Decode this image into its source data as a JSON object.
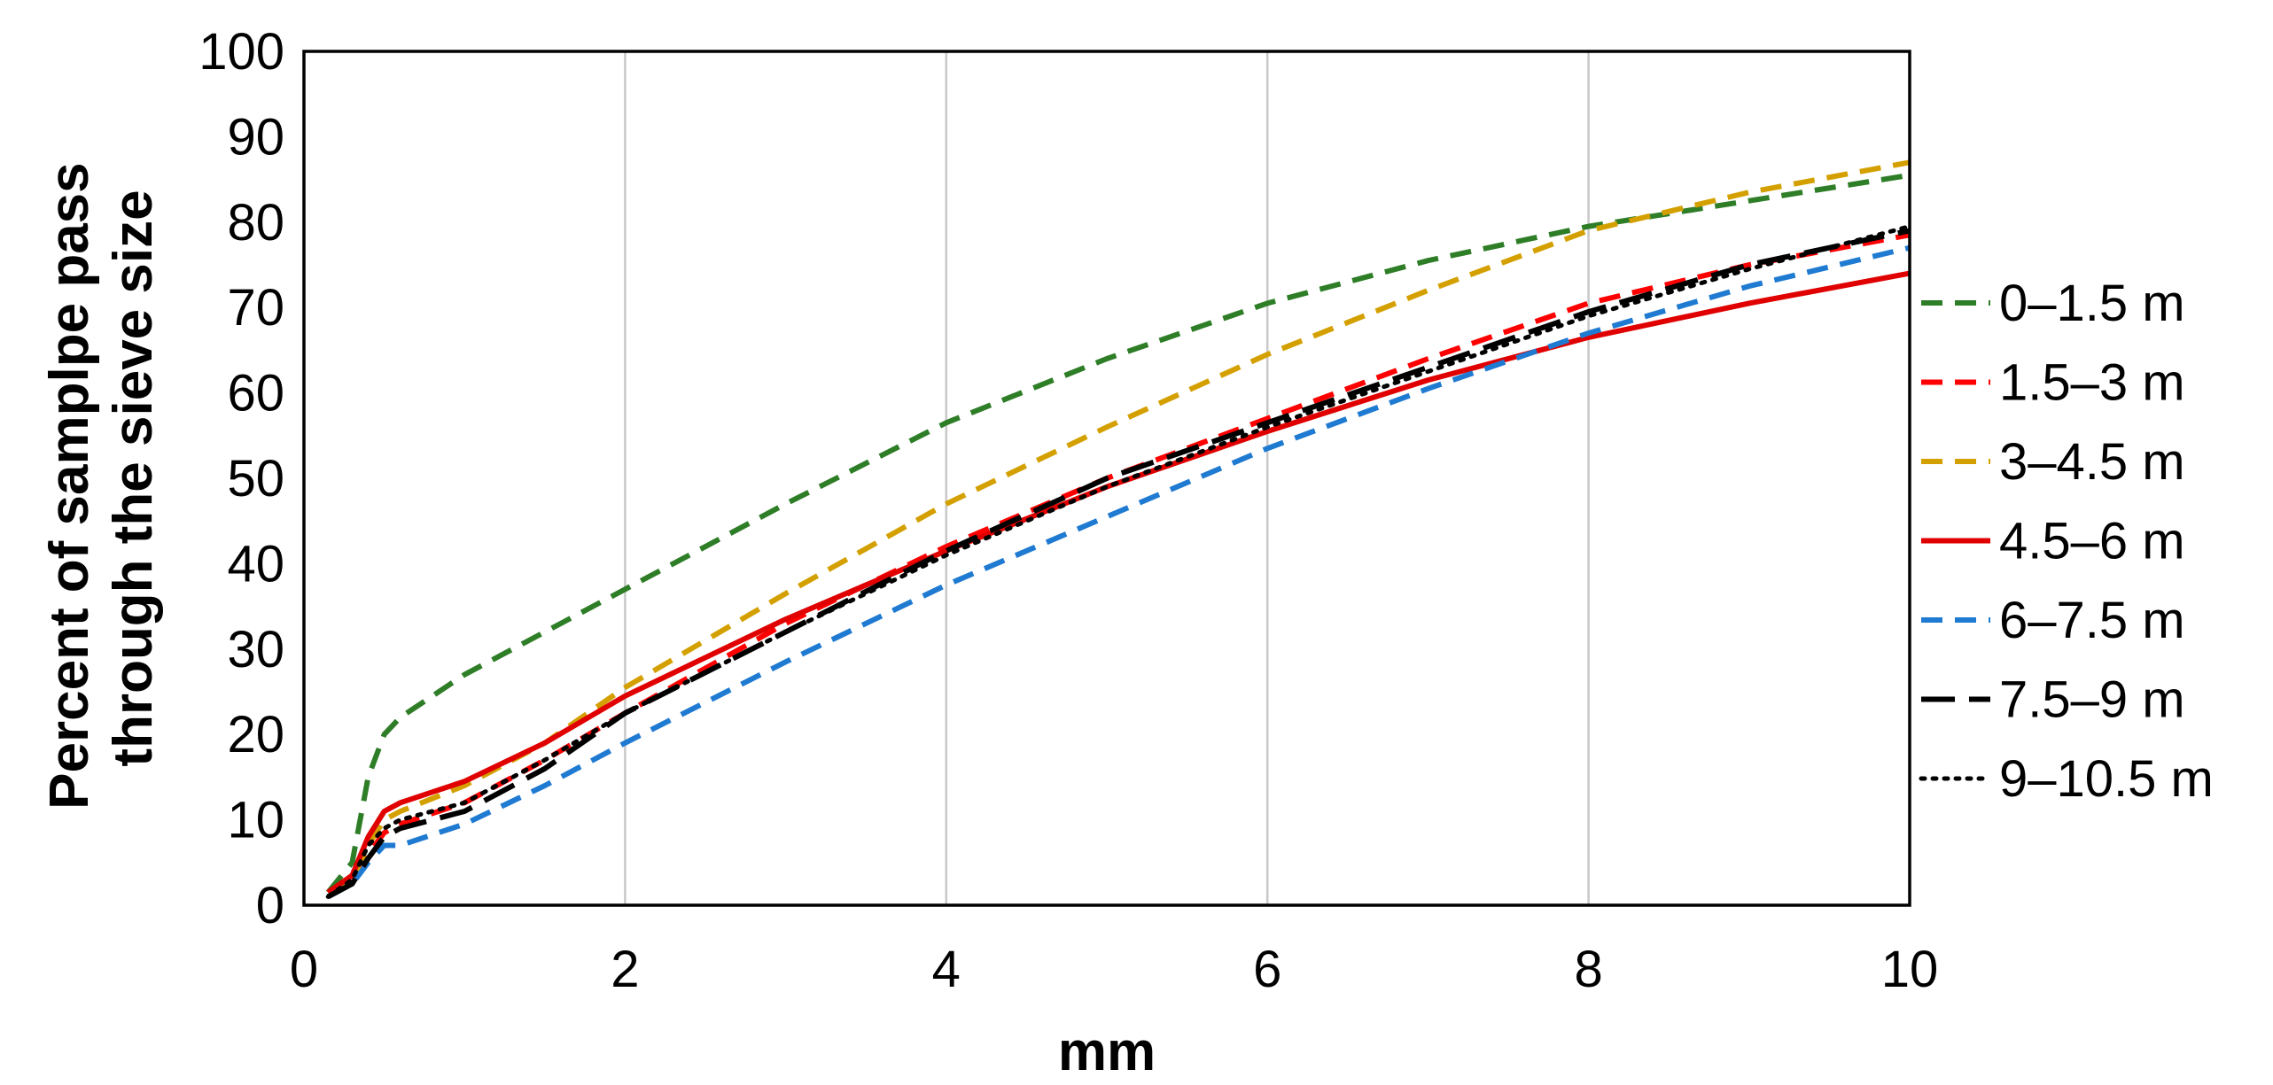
{
  "chart_data": {
    "type": "line",
    "title": "",
    "xlabel": "mm",
    "ylabel_lines": [
      "Percent of samplpe pass",
      "through the sieve size"
    ],
    "xlim": [
      0,
      10
    ],
    "ylim": [
      0,
      100
    ],
    "x_ticks": [
      0,
      2,
      4,
      6,
      8,
      10
    ],
    "y_ticks": [
      0,
      10,
      20,
      30,
      40,
      50,
      60,
      70,
      80,
      90,
      100
    ],
    "vertical_grid": true,
    "horizontal_grid": false,
    "legend_position": "right",
    "x": [
      0.15,
      0.3,
      0.4,
      0.5,
      0.6,
      1.0,
      1.5,
      2.0,
      3.0,
      4.0,
      5.0,
      6.0,
      7.0,
      8.0,
      9.0,
      10.0
    ],
    "series": [
      {
        "name": "0–1.5 m",
        "color": "#2E7D27",
        "dash": "dashed",
        "values": [
          1.5,
          5,
          15,
          20,
          22,
          27,
          32,
          37,
          47,
          56.5,
          64,
          70.5,
          75.5,
          79.5,
          82.5,
          85.5
        ]
      },
      {
        "name": "1.5–3 m",
        "color": "#FF0000",
        "dash": "dashed",
        "values": [
          1.5,
          3,
          6,
          8.5,
          9.5,
          12,
          17,
          22.5,
          33,
          42,
          50,
          57,
          64,
          70.5,
          75,
          78.5
        ]
      },
      {
        "name": "3–4.5 m",
        "color": "#D4A000",
        "dash": "dashed",
        "values": [
          1.5,
          3,
          7,
          10,
          11,
          14,
          19,
          25.5,
          36.5,
          47,
          56,
          64.5,
          72,
          79,
          83.5,
          87
        ]
      },
      {
        "name": "4.5–6 m",
        "color": "#E00000",
        "dash": "solid",
        "values": [
          1.5,
          3.5,
          8,
          11,
          12,
          14.5,
          19,
          24.5,
          33.5,
          41.5,
          49,
          55.5,
          61.5,
          66.5,
          70.5,
          74
        ]
      },
      {
        "name": "6–7.5 m",
        "color": "#1F7AD1",
        "dash": "dashed",
        "values": [
          1,
          2.5,
          5,
          7,
          7,
          9.5,
          14,
          19,
          28.5,
          37.5,
          45.5,
          53.5,
          60.5,
          67,
          72.5,
          77
        ]
      },
      {
        "name": "7.5–9 m",
        "color": "#000000",
        "dash": "longdash",
        "values": [
          1,
          2.5,
          5.5,
          8,
          9,
          11,
          16,
          22.5,
          32,
          41.5,
          50,
          56.5,
          63,
          69.5,
          75,
          79
        ]
      },
      {
        "name": "9–10.5 m",
        "color": "#000000",
        "dash": "dotted",
        "values": [
          1,
          3,
          7,
          9,
          10,
          12,
          17,
          22.5,
          32,
          41,
          49,
          56,
          62.5,
          69,
          74.5,
          79.5
        ]
      }
    ]
  }
}
